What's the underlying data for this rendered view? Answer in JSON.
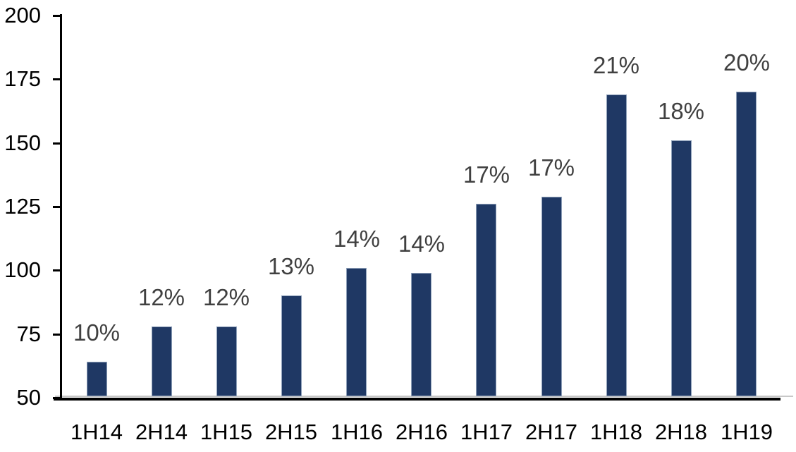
{
  "chart_data": {
    "type": "bar",
    "title": "",
    "xlabel": "",
    "ylabel": "",
    "categories": [
      "1H14",
      "2H14",
      "1H15",
      "2H15",
      "1H16",
      "2H16",
      "1H17",
      "2H17",
      "1H18",
      "2H18",
      "1H19"
    ],
    "values": [
      64,
      78,
      78,
      90,
      101,
      99,
      126,
      129,
      169,
      151,
      170
    ],
    "bar_labels": [
      "10%",
      "12%",
      "12%",
      "13%",
      "14%",
      "14%",
      "17%",
      "17%",
      "21%",
      "18%",
      "20%"
    ],
    "ylim": [
      50,
      200
    ],
    "yticks": [
      50,
      75,
      100,
      125,
      150,
      175,
      200
    ],
    "grid": false,
    "legend": false,
    "colors": {
      "bar_fill": "#1F3864",
      "bar_border": "#8EA0B9",
      "axis": "#000000",
      "tick_label": "#000000",
      "data_label": "#404040",
      "baseline_accent": "#C8C8C8",
      "background": "#FFFFFF"
    }
  }
}
